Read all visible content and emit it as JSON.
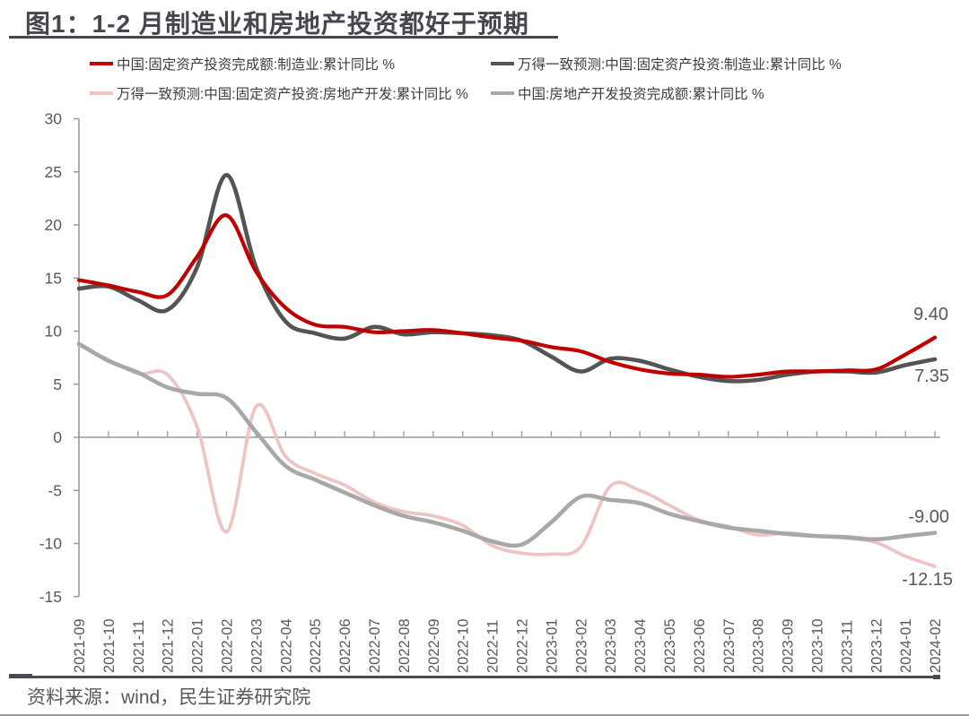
{
  "header": {
    "title": "图1：1-2 月制造业和房地产投资都好于预期"
  },
  "chart_data": {
    "type": "line",
    "x": [
      "2021-09",
      "2021-10",
      "2021-11",
      "2021-12",
      "2022-01",
      "2022-02",
      "2022-03",
      "2022-04",
      "2022-05",
      "2022-06",
      "2022-07",
      "2022-08",
      "2022-09",
      "2022-10",
      "2022-11",
      "2022-12",
      "2023-01",
      "2023-02",
      "2023-03",
      "2023-04",
      "2023-05",
      "2023-06",
      "2023-07",
      "2023-08",
      "2023-09",
      "2023-10",
      "2023-11",
      "2023-12",
      "2024-01",
      "2024-02"
    ],
    "series": [
      {
        "name": "中国:固定资产投资完成额:制造业:累计同比 %",
        "color": "#C00000",
        "values": [
          14.8,
          14.3,
          13.7,
          13.4,
          17.0,
          20.9,
          15.6,
          12.2,
          10.6,
          10.4,
          9.9,
          10.0,
          10.1,
          9.8,
          9.4,
          9.1,
          8.5,
          8.1,
          7.1,
          6.4,
          6.0,
          5.9,
          5.7,
          5.9,
          6.2,
          6.2,
          6.3,
          6.4,
          7.8,
          9.4
        ]
      },
      {
        "name": "万得一致预测:中国:固定资产投资:制造业:累计同比 %",
        "color": "#545454",
        "values": [
          14.0,
          14.2,
          12.9,
          12.0,
          16.0,
          24.7,
          16.0,
          10.9,
          9.8,
          9.3,
          10.4,
          9.7,
          9.9,
          9.8,
          9.6,
          9.1,
          7.6,
          6.2,
          7.4,
          7.2,
          6.4,
          5.7,
          5.3,
          5.4,
          5.9,
          6.2,
          6.2,
          6.1,
          6.8,
          7.35
        ]
      },
      {
        "name": "万得一致预测:中国:固定资产投资:房地产开发:累计同比 %",
        "color": "#EFC4C4",
        "values": [
          8.7,
          7.3,
          6.0,
          5.9,
          1.0,
          -8.9,
          2.9,
          -1.8,
          -3.4,
          -4.5,
          -6.1,
          -7.0,
          -7.4,
          -8.3,
          -10.2,
          -10.9,
          -11.0,
          -10.3,
          -4.6,
          -5.0,
          -6.4,
          -7.8,
          -8.4,
          -9.2,
          -9.0,
          -9.3,
          -9.5,
          -9.9,
          -11.2,
          -12.15
        ]
      },
      {
        "name": "中国:房地产开发投资完成额:累计同比 %",
        "color": "#A8A8A8",
        "values": [
          8.8,
          7.2,
          6.1,
          4.7,
          4.1,
          3.7,
          0.5,
          -2.7,
          -4.0,
          -5.2,
          -6.4,
          -7.4,
          -8.0,
          -8.8,
          -9.8,
          -10.1,
          -8.0,
          -5.6,
          -5.9,
          -6.2,
          -7.2,
          -7.9,
          -8.5,
          -8.8,
          -9.1,
          -9.3,
          -9.4,
          -9.6,
          -9.3,
          -9.0
        ]
      }
    ],
    "ylim": [
      -15,
      30
    ],
    "yticks": [
      30,
      25,
      20,
      15,
      10,
      5,
      0,
      -5,
      -10,
      -15
    ],
    "grid": false,
    "legend_position": "top",
    "end_labels": [
      "9.40",
      "7.35",
      "-9.00",
      "-12.15"
    ]
  },
  "footer": {
    "source": "资料来源：wind，民生证券研究院"
  }
}
